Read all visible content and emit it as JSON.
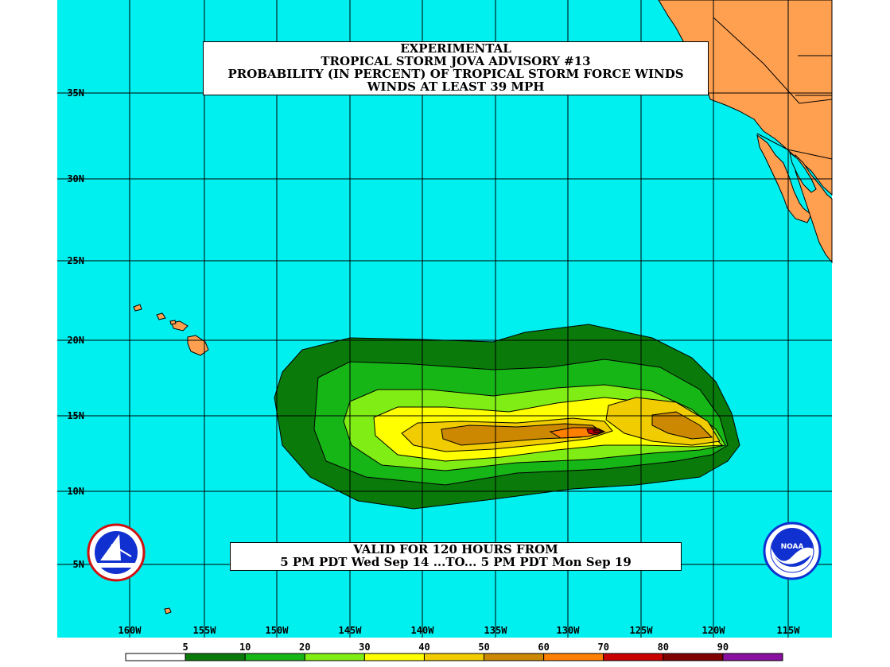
{
  "title": {
    "line1": "EXPERIMENTAL",
    "line2": "TROPICAL STORM JOVA ADVISORY #13",
    "line3": "PROBABILITY (IN PERCENT) OF TROPICAL STORM FORCE WINDS",
    "line4": "WINDS AT LEAST 39 MPH"
  },
  "valid": {
    "line1": "VALID FOR 120 HOURS FROM",
    "line2": "5 PM PDT Wed Sep 14 ...TO... 5 PM PDT Mon Sep 19"
  },
  "lat_labels": [
    "35N",
    "30N",
    "25N",
    "20N",
    "15N",
    "10N",
    "5N"
  ],
  "lon_labels": [
    "160W",
    "155W",
    "150W",
    "145W",
    "140W",
    "135W",
    "130W",
    "125W",
    "120W",
    "115W"
  ],
  "legend": {
    "labels": [
      "5",
      "10",
      "20",
      "30",
      "40",
      "50",
      "60",
      "70",
      "80",
      "90"
    ],
    "colors": [
      "#ffffff",
      "#0a7a0a",
      "#17b617",
      "#80ee14",
      "#ffff00",
      "#f0cc00",
      "#cc8800",
      "#ff7f00",
      "#c80000",
      "#800000",
      "#8a10a0"
    ]
  },
  "map": {
    "ocean_color": "#00f0f0",
    "land_color": "#ffa050",
    "grid_color": "#000000"
  },
  "logos": {
    "left": "nws-logo-icon",
    "right": "noaa-logo-icon"
  }
}
